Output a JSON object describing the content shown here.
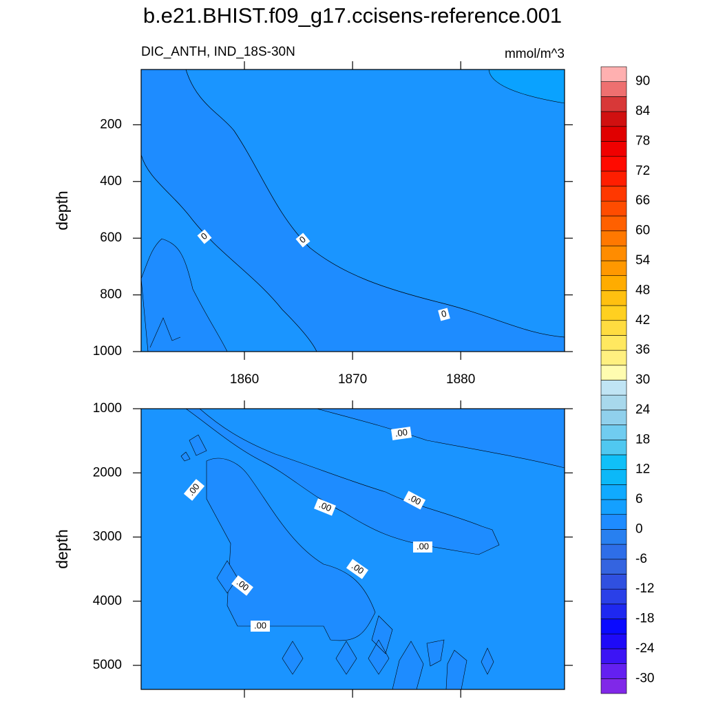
{
  "chart_data": [
    {
      "type": "contour",
      "title": "b.e21.BHIST.f09_g17.ccisens-reference.001",
      "subtitle": "DIC_ANTH, IND_18S-30N",
      "units": "mmol/m^3",
      "y_label": "depth",
      "xlim": [
        1850.45,
        1889.6
      ],
      "xticks": [
        1860,
        1870,
        1880
      ],
      "xtick_labels": true,
      "ylim": [
        1000,
        5
      ],
      "yticks": [
        200,
        400,
        600,
        800,
        1000
      ],
      "contour_labels": [
        "0",
        "0",
        "0"
      ],
      "colorbar": {
        "levels": [
          -30,
          -27,
          -24,
          -21,
          -18,
          -15,
          -12,
          -9,
          -6,
          -3,
          0,
          3,
          6,
          9,
          12,
          15,
          18,
          21,
          24,
          27,
          30,
          33,
          36,
          39,
          42,
          45,
          48,
          51,
          54,
          57,
          60,
          63,
          66,
          69,
          72,
          75,
          78,
          81,
          84,
          87,
          90
        ],
        "label_every": 2,
        "colors": [
          "#8028e8",
          "#6420f0",
          "#3c14f5",
          "#1e0af8",
          "#0a0aff",
          "#1e28f0",
          "#2a40e8",
          "#3050e0",
          "#3464e0",
          "#2e6ee8",
          "#2880f0",
          "#1e8cff",
          "#14a0ff",
          "#10aaff",
          "#0cb8f8",
          "#10c0f8",
          "#50c8f0",
          "#70ccf0",
          "#90d0ec",
          "#a8d8ec",
          "#c0e4f4",
          "#fffcb0",
          "#fff080",
          "#ffe860",
          "#ffdc40",
          "#ffd020",
          "#ffc010",
          "#ffac00",
          "#ff9800",
          "#ff8c00",
          "#ff7800",
          "#ff6000",
          "#ff4c00",
          "#ff3800",
          "#ff1e00",
          "#ff0a00",
          "#f00000",
          "#e00000",
          "#d01010",
          "#d83838",
          "#ee7070",
          "#ffb0b0"
        ]
      }
    },
    {
      "type": "contour",
      "y_label": "depth",
      "xlim": [
        1850.45,
        1889.6
      ],
      "xticks": [
        1860,
        1870,
        1880
      ],
      "xtick_labels": false,
      "ylim": [
        5375,
        1000
      ],
      "yticks": [
        1000,
        2000,
        3000,
        4000,
        5000
      ],
      "contour_labels": [
        ".00",
        ".00",
        ".00",
        ".00",
        ".00",
        ".00",
        ".00",
        ".00"
      ]
    }
  ]
}
